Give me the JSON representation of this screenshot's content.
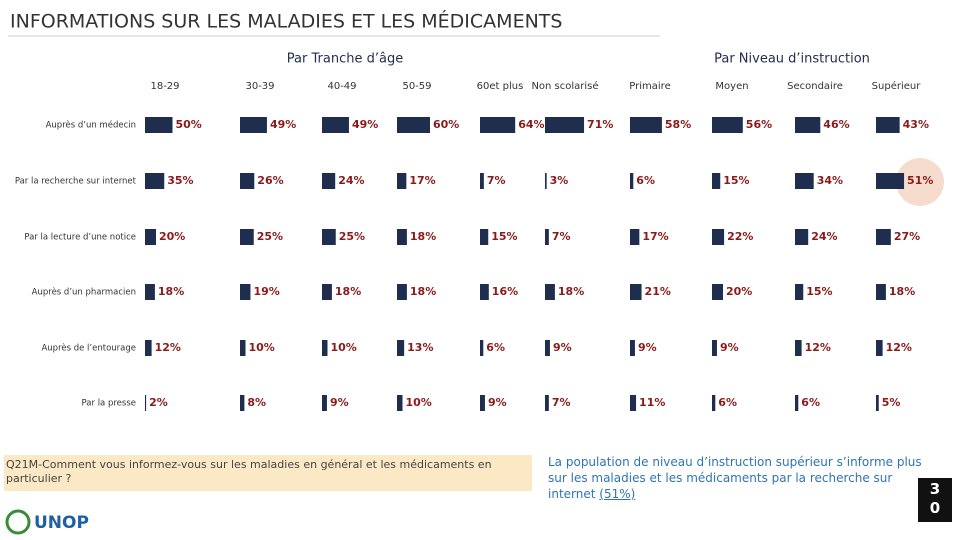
{
  "title": "INFORMATIONS SUR LES MALADIES ET LES MÉDICAMENTS",
  "question": "Q21M-Comment vous informez-vous sur les maladies en général et les médicaments en particulier ?",
  "conclusion": "La population de niveau d’instruction supérieur s’informe plus sur les maladies et les médicaments par la recherche sur internet",
  "conclusion_highlight": "(51%)",
  "page_number": "30",
  "logo": "UNOP",
  "chart_data": [
    {
      "type": "bar",
      "title": "Par Tranche d’âge",
      "color": "#1f2d4e",
      "label_color": "#8b1a1a",
      "categories": [
        "Auprès d’un médecin",
        "Par la recherche sur internet",
        "Par la lecture d’une notice",
        "Auprès d’un pharmacien",
        "Auprès de l’entourage",
        "Par la presse"
      ],
      "series": [
        {
          "name": "18-29",
          "values": [
            50,
            35,
            20,
            18,
            12,
            2
          ],
          "value_labels": [
            "50%",
            "35%",
            "20%",
            "18%",
            "12%",
            "2%"
          ]
        },
        {
          "name": "30-39",
          "values": [
            49,
            26,
            25,
            19,
            10,
            8
          ],
          "value_labels": [
            "49%",
            "26%",
            "25%",
            "19%",
            "10%",
            "8%"
          ]
        },
        {
          "name": "40-49",
          "values": [
            49,
            24,
            25,
            18,
            10,
            9
          ],
          "value_labels": [
            "49%",
            "24%",
            "25%",
            "18%",
            "10%",
            "9%"
          ]
        },
        {
          "name": "50-59",
          "values": [
            60,
            17,
            18,
            18,
            13,
            10
          ],
          "value_labels": [
            "60%",
            "17%",
            "18%",
            "18%",
            "13%",
            "10%"
          ]
        },
        {
          "name": "60et plus",
          "values": [
            64,
            7,
            15,
            16,
            6,
            9
          ],
          "value_labels": [
            "64%",
            "7%",
            "15%",
            "16%",
            "6%",
            "9%"
          ]
        }
      ]
    },
    {
      "type": "bar",
      "title": "Par Niveau d’instruction",
      "color": "#1f2d4e",
      "label_color": "#8b1a1a",
      "series": [
        {
          "name": "Non scolarisé",
          "values": [
            71,
            3,
            7,
            18,
            9,
            7
          ],
          "value_labels": [
            "71%",
            "3%",
            "7%",
            "18%",
            "9%",
            "7%"
          ]
        },
        {
          "name": "Primaire",
          "values": [
            58,
            6,
            17,
            21,
            9,
            11
          ],
          "value_labels": [
            "58%",
            "6%",
            "17%",
            "21%",
            "9%",
            "11%"
          ]
        },
        {
          "name": "Moyen",
          "values": [
            56,
            15,
            22,
            20,
            9,
            6
          ],
          "value_labels": [
            "56%",
            "15%",
            "22%",
            "20%",
            "9%",
            "6%"
          ]
        },
        {
          "name": "Secondaire",
          "values": [
            46,
            34,
            24,
            15,
            12,
            6
          ],
          "value_labels": [
            "46%",
            "34%",
            "24%",
            "15%",
            "12%",
            "6%"
          ]
        },
        {
          "name": "Supérieur",
          "values": [
            43,
            51,
            27,
            18,
            12,
            5
          ],
          "value_labels": [
            "43%",
            "51%",
            "27%",
            "18%",
            "12%",
            "5%"
          ]
        }
      ]
    }
  ]
}
